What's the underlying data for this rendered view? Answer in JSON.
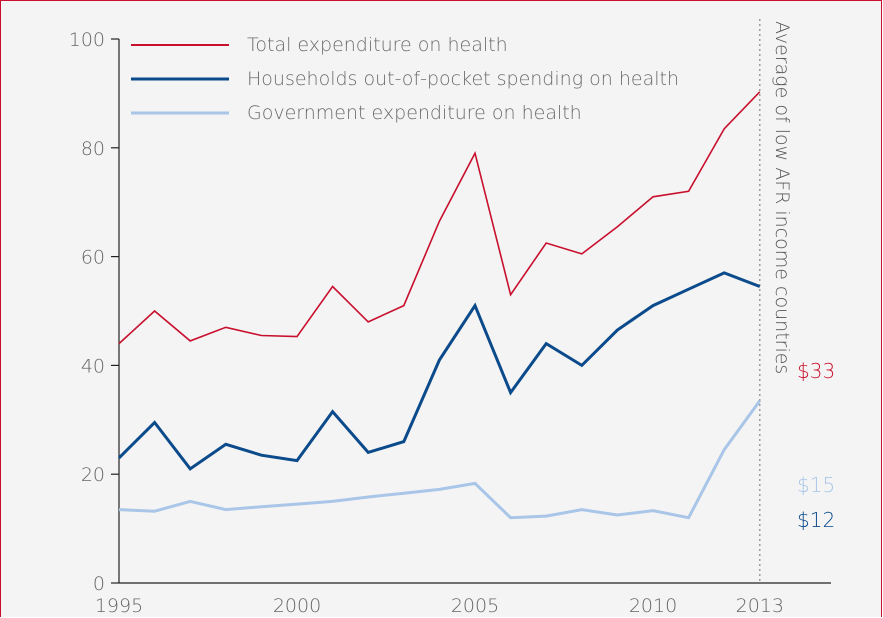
{
  "chart_data": {
    "type": "line",
    "title": "",
    "xlabel": "",
    "ylabel": "",
    "x": [
      1995,
      1996,
      1997,
      1998,
      1999,
      2000,
      2001,
      2002,
      2003,
      2004,
      2005,
      2006,
      2007,
      2008,
      2009,
      2010,
      2011,
      2012,
      2013
    ],
    "xlim": [
      1995,
      2015
    ],
    "ylim": [
      0,
      100
    ],
    "x_ticks": [
      {
        "value": 1995,
        "label": "1995"
      },
      {
        "value": 2000,
        "label": "2000"
      },
      {
        "value": 2005,
        "label": "2005"
      },
      {
        "value": 2010,
        "label": "2010"
      },
      {
        "value": 2013,
        "label": "2013"
      }
    ],
    "y_ticks": [
      {
        "value": 0,
        "label": "0"
      },
      {
        "value": 20,
        "label": "20"
      },
      {
        "value": 40,
        "label": "40"
      },
      {
        "value": 60,
        "label": "60"
      },
      {
        "value": 80,
        "label": "80"
      },
      {
        "value": 100,
        "label": "100"
      }
    ],
    "grid": false,
    "legend_position": "top-left",
    "series": [
      {
        "name": "Total expenditure on health",
        "color": "#c8102e",
        "stroke": "thin",
        "values": [
          44,
          50,
          44.5,
          47,
          45.5,
          45.3,
          54.5,
          48,
          51,
          66.5,
          79,
          53,
          62.5,
          60.5,
          65.5,
          71,
          72,
          83.5,
          90.3
        ]
      },
      {
        "name": "Households out-of-pocket spending on health",
        "color": "#0b4a8b",
        "stroke": "thick",
        "values": [
          23,
          29.5,
          21,
          25.5,
          23.5,
          22.5,
          31.5,
          24,
          26,
          41,
          51,
          35,
          44,
          40,
          46.5,
          51,
          54,
          57,
          54.5
        ]
      },
      {
        "name": "Government expenditure on health",
        "color": "#a9c6e8",
        "stroke": "thick",
        "values": [
          13.5,
          13.2,
          15,
          13.5,
          14,
          14.5,
          15,
          15.8,
          16.5,
          17.2,
          18.3,
          12,
          12.3,
          13.5,
          12.5,
          13.3,
          12,
          24.5,
          33.5
        ]
      }
    ],
    "reference_line": {
      "x": 2013,
      "label": "Average of low AFR income countries",
      "style": "dotted"
    },
    "end_labels": [
      {
        "text": "$33",
        "value": 33,
        "color": "#c8102e"
      },
      {
        "text": "$15",
        "value": 15,
        "color": "#a9c6e8"
      },
      {
        "text": "$12",
        "value": 12,
        "color": "#0b4a8b"
      }
    ]
  }
}
